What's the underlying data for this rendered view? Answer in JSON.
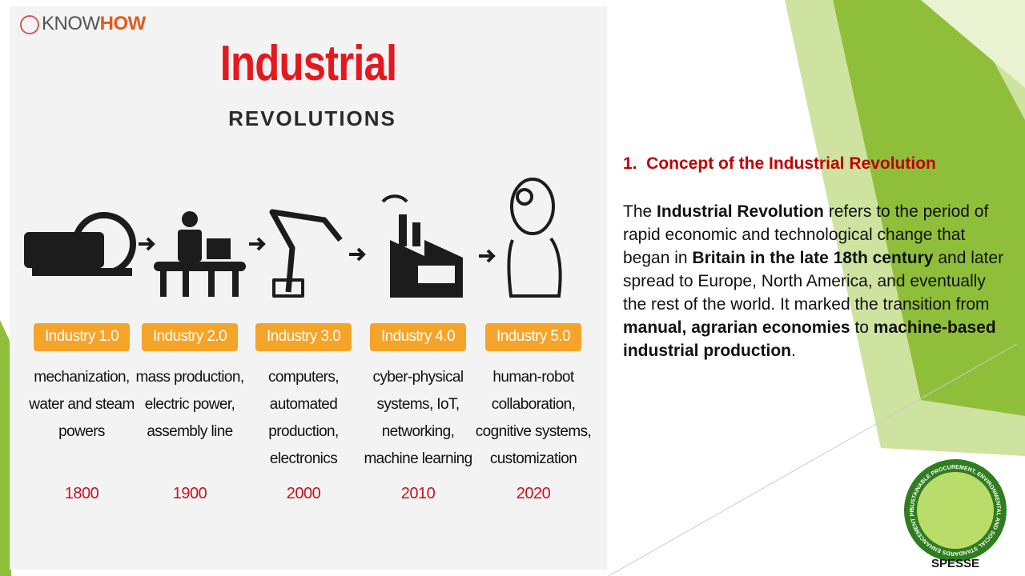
{
  "panel": {
    "logo": {
      "first": "KNOW",
      "second": "HOW"
    },
    "title": "Industrial",
    "subtitle": "REVOLUTIONS",
    "stages": [
      {
        "label": "Industry 1.0",
        "lines": [
          "mechanization,",
          "water and steam",
          "powers"
        ],
        "year": "1800"
      },
      {
        "label": "Industry 2.0",
        "lines": [
          "mass production,",
          "electric power,",
          "assembly line"
        ],
        "year": "1900"
      },
      {
        "label": "Industry 3.0",
        "lines": [
          "computers,",
          "automated",
          "production,",
          "electronics"
        ],
        "year": "2000"
      },
      {
        "label": "Industry 4.0",
        "lines": [
          "cyber-physical",
          "systems, IoT,",
          "networking,",
          "machine learning"
        ],
        "year": "2010"
      },
      {
        "label": "Industry 5.0",
        "lines": [
          "human-robot",
          "collaboration,",
          "cognitive systems,",
          "customization"
        ],
        "year": "2020"
      }
    ]
  },
  "content": {
    "heading": "1.  Concept of the Industrial Revolution",
    "paragraph": [
      {
        "text": "The ",
        "bold": false
      },
      {
        "text": "Industrial Revolution",
        "bold": true
      },
      {
        "text": " refers to the period of rapid economic and technological change that began in ",
        "bold": false
      },
      {
        "text": "Britain in the late 18th century",
        "bold": true
      },
      {
        "text": " and later spread to Europe, North America, and eventually the rest of the world. It marked the transition from ",
        "bold": false
      },
      {
        "text": "manual, agrarian economies",
        "bold": true
      },
      {
        "text": " to ",
        "bold": false
      },
      {
        "text": "machine-based industrial production",
        "bold": true
      },
      {
        "text": ".",
        "bold": false
      }
    ]
  },
  "badge": {
    "ring": "SUSTAINABLE PROCUREMENT, ENVIRONMENTAL AND SOCIAL STANDARDS ENHANCEMENT PROJECT",
    "name": "SPESSE"
  }
}
